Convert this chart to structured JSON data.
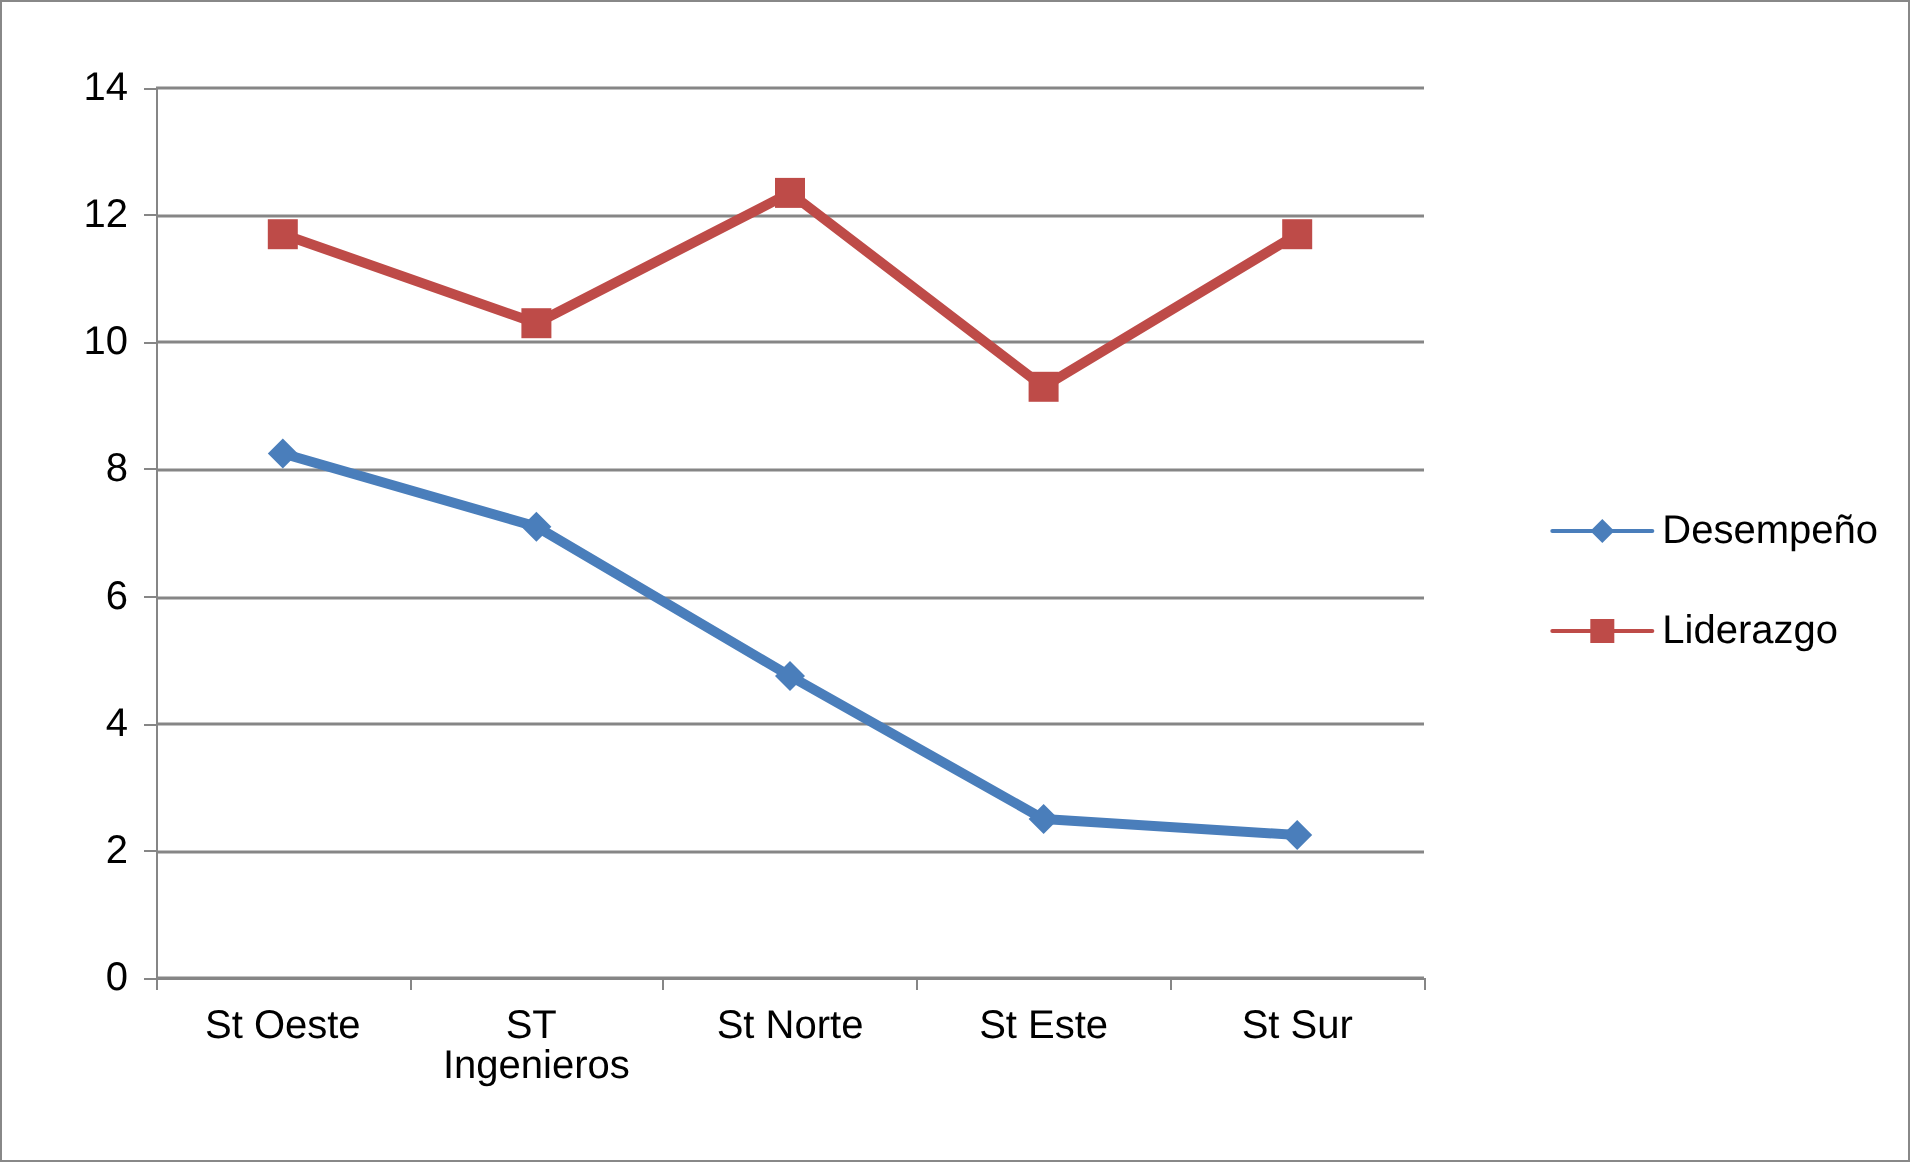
{
  "chart_data": {
    "type": "line",
    "categories": [
      "St Oeste",
      "ST Ingenieros",
      "St Norte",
      "St Este",
      "St Sur"
    ],
    "series": [
      {
        "name": "Desempeño",
        "color": "#4a7ebb",
        "marker": "diamond",
        "values": [
          8.25,
          7.1,
          4.75,
          2.5,
          2.25
        ]
      },
      {
        "name": "Liderazgo",
        "color": "#be4b48",
        "marker": "square",
        "values": [
          11.7,
          10.3,
          12.35,
          9.3,
          11.7
        ]
      }
    ],
    "ylim": [
      0,
      14
    ],
    "yticks": [
      0,
      2,
      4,
      6,
      8,
      10,
      12,
      14
    ],
    "grid": "y",
    "legend": "right",
    "line_style": "solid"
  }
}
